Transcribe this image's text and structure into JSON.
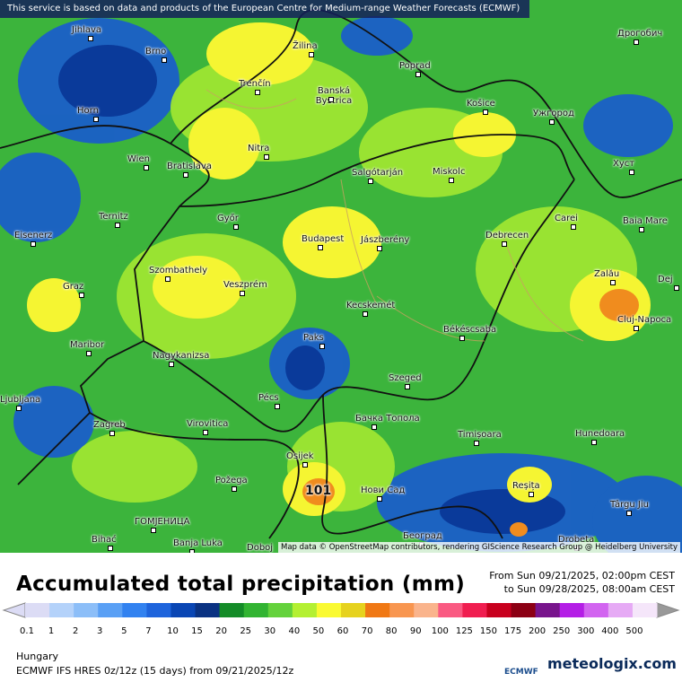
{
  "banner": "This service is based on data and products of the European Centre for Medium-range Weather Forecasts (ECMWF)",
  "attribution": "Map data © OpenStreetMap contributors, rendering GIScience Research Group @ Heidelberg University",
  "title": "Accumulated total precipitation (mm)",
  "date_from": "From Sun 09/21/2025, 02:00pm CEST",
  "date_to": "to Sun 09/28/2025, 08:00am CEST",
  "region": "Hungary",
  "model_info": "ECMWF IFS HRES 0z/12z (15 days) from 09/21/2025/12z",
  "logo_ecmwf": "ECMWF",
  "logo_brand": "meteologix.com",
  "max_value": "101",
  "places": [
    "Jihlava",
    "Brno",
    "Žilina",
    "Poprad",
    "Дрогобич",
    "Horn",
    "Trenčín",
    "Banská Bystrica",
    "Košice",
    "Ужгород",
    "Wien",
    "Bratislava",
    "Nitra",
    "Salgótarján",
    "Miskolc",
    "Хуст",
    "Ternitz",
    "Győr",
    "Carei",
    "Baia Mare",
    "Eisenerz",
    "Budapest",
    "Jászberény",
    "Debrecen",
    "Szombathely",
    "Graz",
    "Veszprém",
    "Zalău",
    "Dej",
    "Kecskemét",
    "Cluj-Napoca",
    "Maribor",
    "Paks",
    "Békéscsaba",
    "Nagykanizsa",
    "Szeged",
    "Pécs",
    "Ljubljana",
    "Бачка Топола",
    "Zagreb",
    "Virovitica",
    "Timișoara",
    "Hunedoara",
    "Osijek",
    "Požega",
    "Нови Сад",
    "Reșița",
    "Târgu Jiu",
    "ГОМЈЕНИЦА",
    "Banja Luka",
    "Doboj",
    "Београд",
    "Drobeta",
    "Bihać"
  ],
  "legend": [
    {
      "value": 0.1,
      "color": "#dcdcf5"
    },
    {
      "value": 1,
      "color": "#b4d2fa"
    },
    {
      "value": 2,
      "color": "#8cbef8"
    },
    {
      "value": 3,
      "color": "#5aa0f5"
    },
    {
      "value": 5,
      "color": "#3282f0"
    },
    {
      "value": 7,
      "color": "#1e64dc"
    },
    {
      "value": 10,
      "color": "#0a46b4"
    },
    {
      "value": 15,
      "color": "#0a3282"
    },
    {
      "value": 20,
      "color": "#148c28"
    },
    {
      "value": 25,
      "color": "#32b432"
    },
    {
      "value": 30,
      "color": "#64d23c"
    },
    {
      "value": 40,
      "color": "#b4f032"
    },
    {
      "value": 50,
      "color": "#fafa32"
    },
    {
      "value": 60,
      "color": "#e6d21e"
    },
    {
      "value": 70,
      "color": "#f07814"
    },
    {
      "value": 80,
      "color": "#f89650"
    },
    {
      "value": 90,
      "color": "#fab48c"
    },
    {
      "value": 100,
      "color": "#fa5a82"
    },
    {
      "value": 125,
      "color": "#f01e50"
    },
    {
      "value": 150,
      "color": "#c8001e"
    },
    {
      "value": 175,
      "color": "#8c0014"
    },
    {
      "value": 200,
      "color": "#78148c"
    },
    {
      "value": 250,
      "color": "#b41ee6"
    },
    {
      "value": 300,
      "color": "#d264f0"
    },
    {
      "value": 400,
      "color": "#e6aaf5"
    },
    {
      "value": 500,
      "color": "#f5e6fa"
    }
  ]
}
